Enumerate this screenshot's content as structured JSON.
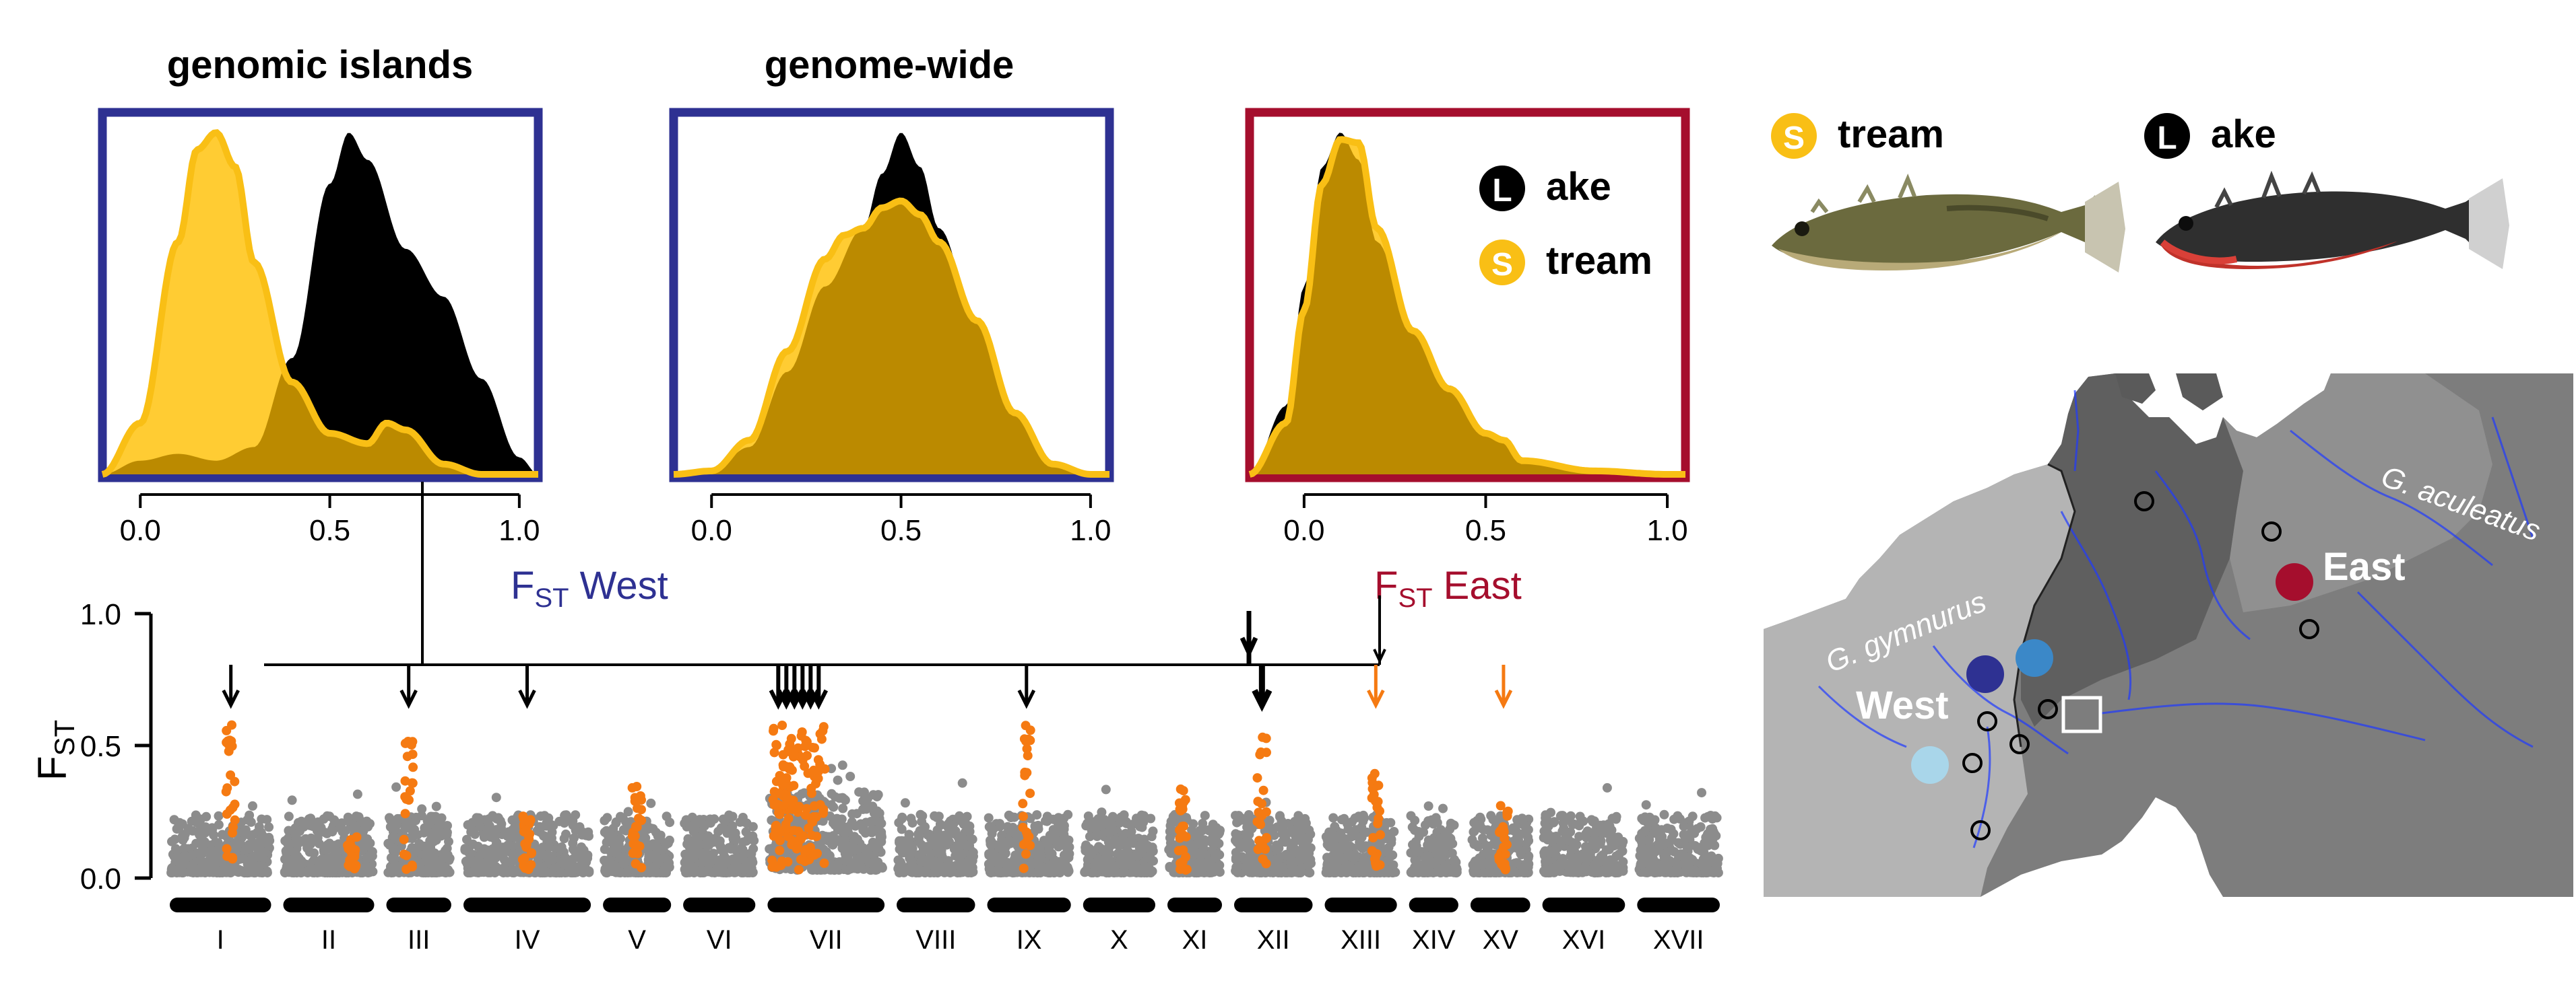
{
  "colors": {
    "west": "#2e3192",
    "east": "#a50e2d",
    "lake": "#000000",
    "stream": "#f9bf15",
    "stream_fill": "#ffcc33",
    "overlap": "#bb8a00",
    "outlier": "#f57a12",
    "neutral_point": "#8c8c8c",
    "map_west": "#b4b4b4",
    "map_central": "#5f5f5f",
    "map_east": "#7d7d7d",
    "map_sea": "#ffffff",
    "site_west_light": "#a9d6ea",
    "site_west_mid": "#3b88c8",
    "site_west_dark": "#2e3192",
    "site_east": "#a50e2d"
  },
  "headings": {
    "genomic_islands": "genomic islands",
    "genome_wide": "genome-wide"
  },
  "axis_labels": {
    "fst_west_main": "F",
    "fst_west_sub": "ST",
    "fst_west_suffix": " West",
    "fst_east_main": "F",
    "fst_east_sub": "ST",
    "fst_east_suffix": " East",
    "fst_y_main": "F",
    "fst_y_sub": "ST"
  },
  "legend": {
    "lake_letter": "L",
    "lake_rest": "ake",
    "stream_letter": "S",
    "stream_rest": "tream"
  },
  "fish_labels": {
    "stream_letter": "S",
    "stream_rest": "tream",
    "lake_letter": "L",
    "lake_rest": "ake"
  },
  "map": {
    "west_label": "West",
    "east_label": "East",
    "species_west": "G. gymnurus",
    "species_east": "G. aculeatus"
  },
  "chart_data": [
    {
      "type": "area",
      "title": "genomic islands",
      "xlabel": "FST West",
      "xlim": [
        -0.1,
        1.05
      ],
      "xticks": [
        0.0,
        0.5,
        1.0
      ],
      "xtick_labels": [
        "0.0",
        "0.5",
        "1.0"
      ],
      "series": [
        {
          "name": "Lake",
          "x": [
            -0.1,
            0.0,
            0.1,
            0.2,
            0.3,
            0.4,
            0.5,
            0.55,
            0.6,
            0.7,
            0.8,
            0.9,
            1.0,
            1.05
          ],
          "y": [
            0.0,
            0.04,
            0.06,
            0.04,
            0.08,
            0.34,
            0.85,
            1.0,
            0.92,
            0.66,
            0.52,
            0.28,
            0.05,
            0.0
          ]
        },
        {
          "name": "Stream",
          "x": [
            -0.1,
            0.0,
            0.1,
            0.15,
            0.2,
            0.25,
            0.3,
            0.4,
            0.5,
            0.6,
            0.65,
            0.7,
            0.8,
            0.9,
            1.0
          ],
          "y": [
            0.0,
            0.15,
            0.68,
            0.95,
            1.0,
            0.9,
            0.62,
            0.27,
            0.12,
            0.09,
            0.15,
            0.13,
            0.03,
            0.0,
            0.0
          ]
        }
      ]
    },
    {
      "type": "area",
      "title": "genome-wide",
      "xlabel": "FST West",
      "xlim": [
        -0.1,
        1.05
      ],
      "xticks": [
        0.0,
        0.5,
        1.0
      ],
      "xtick_labels": [
        "0.0",
        "0.5",
        "1.0"
      ],
      "series": [
        {
          "name": "Lake",
          "x": [
            -0.1,
            0.0,
            0.1,
            0.2,
            0.3,
            0.4,
            0.45,
            0.5,
            0.55,
            0.6,
            0.7,
            0.8,
            0.9,
            1.0
          ],
          "y": [
            0.0,
            0.01,
            0.08,
            0.3,
            0.55,
            0.72,
            0.88,
            1.0,
            0.9,
            0.72,
            0.45,
            0.18,
            0.03,
            0.0
          ]
        },
        {
          "name": "Stream",
          "x": [
            -0.1,
            0.0,
            0.1,
            0.2,
            0.3,
            0.35,
            0.4,
            0.45,
            0.5,
            0.55,
            0.6,
            0.7,
            0.8,
            0.9,
            1.0
          ],
          "y": [
            0.0,
            0.01,
            0.1,
            0.36,
            0.63,
            0.7,
            0.72,
            0.78,
            0.8,
            0.76,
            0.68,
            0.45,
            0.18,
            0.03,
            0.0
          ]
        }
      ]
    },
    {
      "type": "area",
      "title": "",
      "xlabel": "FST East",
      "xlim": [
        -0.15,
        1.05
      ],
      "xticks": [
        0.0,
        0.5,
        1.0
      ],
      "xtick_labels": [
        "0.0",
        "0.5",
        "1.0"
      ],
      "series": [
        {
          "name": "Lake",
          "x": [
            -0.15,
            -0.05,
            0.0,
            0.05,
            0.1,
            0.15,
            0.2,
            0.3,
            0.4,
            0.5,
            0.55,
            0.6,
            0.8,
            1.0
          ],
          "y": [
            0.0,
            0.2,
            0.55,
            0.9,
            1.0,
            0.92,
            0.68,
            0.42,
            0.26,
            0.12,
            0.1,
            0.04,
            0.01,
            0.0
          ]
        },
        {
          "name": "Stream",
          "x": [
            -0.15,
            -0.05,
            0.0,
            0.05,
            0.1,
            0.15,
            0.2,
            0.3,
            0.4,
            0.5,
            0.55,
            0.6,
            0.8,
            1.0
          ],
          "y": [
            0.0,
            0.15,
            0.48,
            0.85,
            0.98,
            0.97,
            0.72,
            0.42,
            0.25,
            0.12,
            0.1,
            0.04,
            0.01,
            0.0
          ]
        }
      ]
    },
    {
      "type": "scatter",
      "title": "",
      "xlabel": "",
      "ylabel": "FST",
      "ylim": [
        0.0,
        1.0
      ],
      "yticks": [
        0.0,
        0.5,
        1.0
      ],
      "ytick_labels": [
        "0.0",
        "0.5",
        "1.0"
      ],
      "chromosomes": [
        "I",
        "II",
        "III",
        "IV",
        "V",
        "VI",
        "VII",
        "VIII",
        "IX",
        "X",
        "XI",
        "XII",
        "XIII",
        "XIV",
        "XV",
        "XVI",
        "XVII"
      ],
      "chromosome_sizes": [
        1.0,
        0.9,
        0.65,
        1.25,
        0.68,
        0.72,
        1.15,
        0.78,
        0.83,
        0.72,
        0.55,
        0.78,
        0.72,
        0.5,
        0.6,
        0.82,
        0.82
      ],
      "outlier_peaks": [
        {
          "chromosome": "I",
          "position": 0.6,
          "max_fst": 0.6
        },
        {
          "chromosome": "II",
          "position": 0.75,
          "max_fst": 0.18
        },
        {
          "chromosome": "III",
          "position": 0.35,
          "max_fst": 0.53
        },
        {
          "chromosome": "IV",
          "position": 0.5,
          "max_fst": 0.24
        },
        {
          "chromosome": "V",
          "position": 0.5,
          "max_fst": 0.35
        },
        {
          "chromosome": "VII",
          "position": 0.27,
          "max_fst": 0.58
        },
        {
          "chromosome": "IX",
          "position": 0.47,
          "max_fst": 0.59
        },
        {
          "chromosome": "XI",
          "position": 0.3,
          "max_fst": 0.37
        },
        {
          "chromosome": "XII",
          "position": 0.36,
          "max_fst": 0.55
        },
        {
          "chromosome": "XIII",
          "position": 0.7,
          "max_fst": 0.42
        },
        {
          "chromosome": "XV",
          "position": 0.55,
          "max_fst": 0.28
        }
      ],
      "arrows": [
        {
          "chromosome": "I",
          "color": "black"
        },
        {
          "chromosome": "III",
          "color": "black"
        },
        {
          "chromosome": "IV",
          "color": "black"
        },
        {
          "chromosome": "VII",
          "color": "black",
          "count": 6
        },
        {
          "chromosome": "IX",
          "color": "black"
        },
        {
          "chromosome": "XII",
          "color": "black",
          "bold": true
        },
        {
          "chromosome": "XIII",
          "color": "orange"
        },
        {
          "chromosome": "XV",
          "color": "orange"
        }
      ]
    }
  ]
}
